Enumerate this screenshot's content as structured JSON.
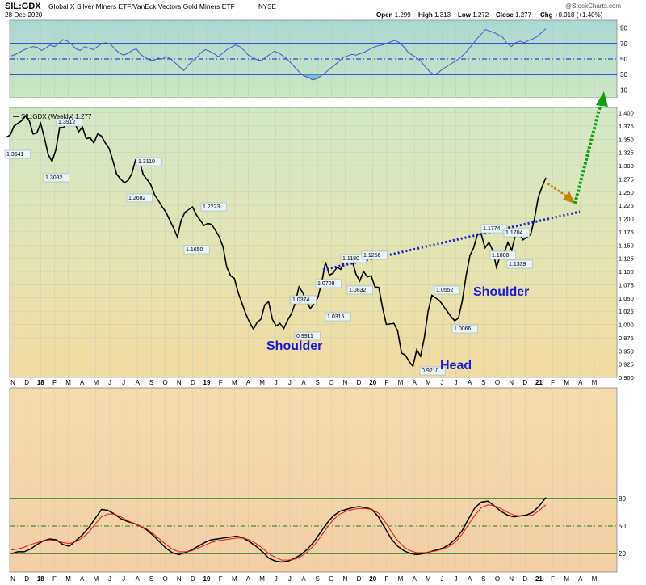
{
  "header": {
    "symbol": "SIL:GDX",
    "description": "Global X Silver Miners ETF/VanEck Vectors Gold Miners ETF",
    "exchange": "NYSE",
    "date": "28-Dec-2020",
    "watermark": "@StockCharts.com",
    "ohlc": [
      {
        "label": "Open",
        "value": "1.299"
      },
      {
        "label": "High",
        "value": "1.313"
      },
      {
        "label": "Low",
        "value": "1.272"
      },
      {
        "label": "Close",
        "value": "1.277"
      },
      {
        "label": "Chg",
        "value": "+0.018 (+1.40%)"
      }
    ]
  },
  "colors": {
    "price_line": "#000000",
    "neckline": "#1a1ad4",
    "rsi_line": "#4a55c8",
    "rsi_fill": "#5ab4c8",
    "stoch_k": "#000000",
    "stoch_d": "#e01818",
    "orange_arrow": "#c08000",
    "green_arrow": "#14a014",
    "annotation_text": "#1a1ad4"
  },
  "x_axis": {
    "labels": [
      "N",
      "D",
      "18",
      "F",
      "M",
      "A",
      "M",
      "J",
      "J",
      "A",
      "S",
      "O",
      "N",
      "D",
      "19",
      "F",
      "M",
      "A",
      "M",
      "J",
      "J",
      "A",
      "S",
      "O",
      "N",
      "D",
      "20",
      "F",
      "M",
      "A",
      "M",
      "J",
      "J",
      "A",
      "S",
      "O",
      "N",
      "D",
      "21",
      "F",
      "M",
      "A",
      "M"
    ],
    "bold": [
      "18",
      "19",
      "20",
      "21"
    ]
  },
  "chart_data": [
    {
      "type": "line",
      "panel": "rsi",
      "series": [
        {
          "values": [
            54,
            56,
            59,
            62,
            64,
            66,
            65,
            61,
            64,
            68,
            66,
            70,
            75,
            73,
            69,
            63,
            61,
            66,
            64,
            62,
            66,
            70,
            71,
            69,
            63,
            58,
            55,
            57,
            61,
            63,
            56,
            52,
            49,
            48,
            51,
            50,
            53,
            50,
            45,
            40,
            35,
            42,
            47,
            52,
            58,
            62,
            60,
            57,
            53,
            57,
            62,
            65,
            68,
            66,
            61,
            55,
            52,
            49,
            48,
            52,
            56,
            60,
            58,
            54,
            50,
            44,
            38,
            32,
            28,
            26,
            23,
            25,
            29,
            33,
            38,
            42,
            47,
            52,
            54,
            56,
            55,
            57,
            59,
            62,
            65,
            67,
            68,
            70,
            72,
            74,
            71,
            66,
            59,
            55,
            52,
            47,
            40,
            34,
            30,
            32,
            37,
            40,
            44,
            47,
            51,
            56,
            62,
            69,
            76,
            82,
            88,
            86,
            84,
            81,
            78,
            70,
            66,
            71,
            73,
            71,
            74,
            76,
            79,
            84,
            89
          ]
        }
      ],
      "reference_lines": [
        30,
        50,
        70
      ],
      "ylim": [
        0,
        100
      ],
      "tick_labels": [
        "90",
        "70",
        "50",
        "30",
        "10"
      ]
    },
    {
      "type": "line",
      "panel": "price",
      "legend": "SIL:GDX (Weekly) 1.277",
      "ylim": [
        0.9,
        1.41
      ],
      "tick_labels": [
        "1.400",
        "1.375",
        "1.350",
        "1.325",
        "1.300",
        "1.275",
        "1.250",
        "1.225",
        "1.200",
        "1.175",
        "1.150",
        "1.125",
        "1.100",
        "1.075",
        "1.050",
        "1.025",
        "1.000",
        "0.975",
        "0.950",
        "0.925",
        "0.900"
      ],
      "series": [
        {
          "values": [
            1.354,
            1.358,
            1.375,
            1.38,
            1.385,
            1.394,
            1.385,
            1.36,
            1.362,
            1.38,
            1.352,
            1.321,
            1.308,
            1.33,
            1.372,
            1.372,
            1.38,
            1.391,
            1.38,
            1.364,
            1.373,
            1.351,
            1.353,
            1.343,
            1.36,
            1.356,
            1.343,
            1.333,
            1.31,
            1.284,
            1.275,
            1.268,
            1.272,
            1.285,
            1.311,
            1.309,
            1.283,
            1.274,
            1.264,
            1.245,
            1.234,
            1.222,
            1.212,
            1.197,
            1.182,
            1.165,
            1.197,
            1.212,
            1.217,
            1.222,
            1.207,
            1.197,
            1.187,
            1.191,
            1.189,
            1.178,
            1.166,
            1.147,
            1.108,
            1.092,
            1.087,
            1.06,
            1.04,
            1.02,
            1.004,
            0.991,
            1.004,
            1.01,
            1.037,
            1.043,
            1.01,
            0.997,
            1.002,
            0.992,
            1.008,
            1.02,
            1.04,
            1.071,
            1.06,
            1.043,
            1.03,
            1.04,
            1.051,
            1.08,
            1.118,
            1.093,
            1.097,
            1.108,
            1.104,
            1.121,
            1.126,
            1.121,
            1.095,
            1.082,
            1.1,
            1.09,
            1.092,
            1.071,
            1.07,
            1.032,
            1.0,
            1.001,
            1.002,
            0.987,
            0.946,
            0.942,
            0.93,
            0.921,
            0.952,
            0.94,
            0.975,
            1.025,
            1.055,
            1.05,
            1.045,
            1.035,
            1.025,
            1.015,
            1.007,
            1.012,
            1.045,
            1.092,
            1.13,
            1.145,
            1.171,
            1.17,
            1.145,
            1.155,
            1.14,
            1.108,
            1.13,
            1.134,
            1.155,
            1.14,
            1.17,
            1.171,
            1.16,
            1.165,
            1.17,
            1.2,
            1.24,
            1.26,
            1.277
          ]
        }
      ],
      "annotations": [
        {
          "text": "1.3541",
          "type": "value"
        },
        {
          "text": "1.3912",
          "type": "value"
        },
        {
          "text": "1.3082",
          "type": "value"
        },
        {
          "text": "1.2682",
          "type": "value"
        },
        {
          "text": "1.3110",
          "type": "value"
        },
        {
          "text": "1.2223",
          "type": "value"
        },
        {
          "text": "1.1650",
          "type": "value"
        },
        {
          "text": "1.0374",
          "type": "value"
        },
        {
          "text": "0.9911",
          "type": "value"
        },
        {
          "text": "1.0709",
          "type": "value"
        },
        {
          "text": "1.0315",
          "type": "value"
        },
        {
          "text": "1.1180",
          "type": "value"
        },
        {
          "text": "1.0832",
          "type": "value"
        },
        {
          "text": "1.1256",
          "type": "value"
        },
        {
          "text": "1.0552",
          "type": "value"
        },
        {
          "text": "0.9210",
          "type": "value"
        },
        {
          "text": "1.0066",
          "type": "value"
        },
        {
          "text": "1.1774",
          "type": "value"
        },
        {
          "text": "1.1704",
          "type": "value"
        },
        {
          "text": "1.1080",
          "type": "value"
        },
        {
          "text": "1.1339",
          "type": "value"
        }
      ],
      "pattern_labels": [
        "Shoulder",
        "Head",
        "Shoulder"
      ]
    },
    {
      "type": "line",
      "panel": "stochastic",
      "ylim": [
        0,
        100
      ],
      "reference_lines": [
        20,
        50,
        80
      ],
      "tick_labels": [
        "80",
        "50",
        "20"
      ],
      "series": [
        {
          "name": "%K",
          "values": [
            20,
            22,
            22,
            25,
            30,
            34,
            36,
            35,
            30,
            28,
            34,
            40,
            48,
            58,
            68,
            67,
            63,
            58,
            55,
            53,
            50,
            46,
            40,
            33,
            26,
            21,
            19,
            21,
            24,
            28,
            32,
            35,
            36,
            37,
            38,
            39,
            37,
            33,
            28,
            22,
            15,
            12,
            11,
            12,
            15,
            19,
            25,
            33,
            43,
            53,
            61,
            66,
            68,
            70,
            71,
            70,
            68,
            60,
            48,
            36,
            28,
            23,
            20,
            19,
            20,
            22,
            24,
            26,
            30,
            36,
            45,
            58,
            70,
            76,
            77,
            72,
            66,
            62,
            60,
            61,
            62,
            65,
            72,
            81
          ]
        },
        {
          "name": "%D",
          "values": [
            24,
            25,
            27,
            30,
            32,
            34,
            35,
            34,
            32,
            31,
            33,
            37,
            43,
            52,
            60,
            63,
            63,
            60,
            56,
            53,
            50,
            47,
            42,
            36,
            30,
            25,
            22,
            22,
            23,
            26,
            29,
            32,
            34,
            35,
            36,
            37,
            37,
            35,
            31,
            26,
            20,
            16,
            13,
            13,
            14,
            17,
            22,
            29,
            38,
            48,
            57,
            63,
            66,
            68,
            69,
            69,
            68,
            64,
            55,
            44,
            34,
            27,
            23,
            21,
            21,
            22,
            23,
            25,
            28,
            33,
            41,
            52,
            62,
            70,
            73,
            72,
            69,
            65,
            62,
            61,
            61,
            62,
            67,
            73
          ]
        }
      ]
    }
  ]
}
